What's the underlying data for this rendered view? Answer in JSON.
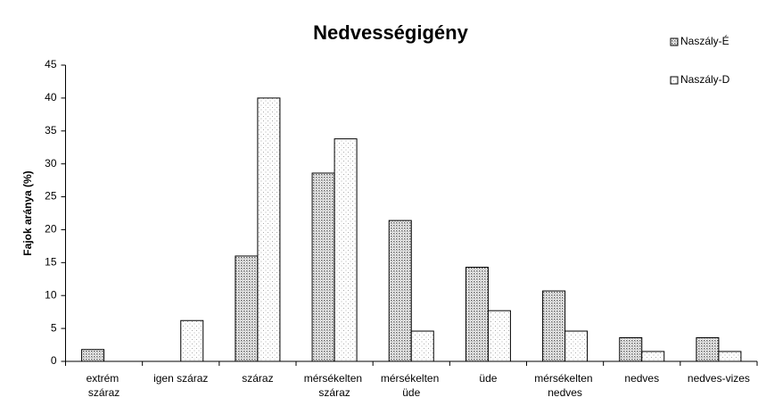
{
  "chart_data": {
    "type": "bar",
    "title": "Nedvességigény",
    "ylabel": "Fajok aránya (%)",
    "categories": [
      "extrém\nszáraz",
      "igen száraz",
      "száraz",
      "mérsékelten\nszáraz",
      "mérsékelten\nüde",
      "üde",
      "mérsékelten\nnedves",
      "nedves",
      "nedves-vizes"
    ],
    "series": [
      {
        "name": "Naszály-É",
        "color": "#666666",
        "values": [
          1.8,
          0,
          16,
          28.6,
          21.4,
          14.3,
          10.7,
          3.6,
          3.6
        ]
      },
      {
        "name": "Naszály-D",
        "color": "#aaaaaa",
        "values": [
          0,
          6.2,
          40,
          33.8,
          4.6,
          7.7,
          4.6,
          1.5,
          1.5
        ]
      }
    ],
    "ylim": [
      0,
      45
    ],
    "yticks": [
      0,
      5,
      10,
      15,
      20,
      25,
      30,
      35,
      40,
      45
    ],
    "grid": false,
    "legend": "top-right"
  }
}
